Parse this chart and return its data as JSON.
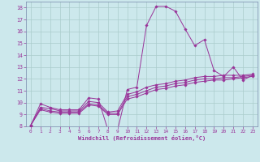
{
  "xlabel": "Windchill (Refroidissement éolien,°C)",
  "background_color": "#cce8ec",
  "line_color": "#993399",
  "grid_color": "#aacccc",
  "spine_color": "#7788aa",
  "xlim": [
    -0.5,
    23.5
  ],
  "ylim": [
    8,
    18.5
  ],
  "xticks": [
    0,
    1,
    2,
    3,
    4,
    5,
    6,
    7,
    8,
    9,
    10,
    11,
    12,
    13,
    14,
    15,
    16,
    17,
    18,
    19,
    20,
    21,
    22,
    23
  ],
  "yticks": [
    8,
    9,
    10,
    11,
    12,
    13,
    14,
    15,
    16,
    17,
    18
  ],
  "lines": [
    {
      "x": [
        0,
        1,
        2,
        3,
        4,
        5,
        6,
        7,
        8,
        9,
        10,
        11,
        12,
        13,
        14,
        15,
        16,
        17,
        18,
        19,
        20,
        21,
        22,
        23
      ],
      "y": [
        8.1,
        9.9,
        9.6,
        9.4,
        9.4,
        9.4,
        10.4,
        10.3,
        7.7,
        7.7,
        11.1,
        11.3,
        16.5,
        18.1,
        18.1,
        17.7,
        16.2,
        14.8,
        15.3,
        12.7,
        12.2,
        13.0,
        11.9,
        12.3
      ]
    },
    {
      "x": [
        0,
        1,
        2,
        3,
        4,
        5,
        6,
        7,
        8,
        9,
        10,
        11,
        12,
        13,
        14,
        15,
        16,
        17,
        18,
        19,
        20,
        21,
        22,
        23
      ],
      "y": [
        8.1,
        9.6,
        9.5,
        9.3,
        9.3,
        9.3,
        10.1,
        10.0,
        9.2,
        9.3,
        10.7,
        10.9,
        11.3,
        11.5,
        11.6,
        11.8,
        11.9,
        12.1,
        12.2,
        12.2,
        12.3,
        12.3,
        12.3,
        12.4
      ]
    },
    {
      "x": [
        0,
        1,
        2,
        3,
        4,
        5,
        6,
        7,
        8,
        9,
        10,
        11,
        12,
        13,
        14,
        15,
        16,
        17,
        18,
        19,
        20,
        21,
        22,
        23
      ],
      "y": [
        8.1,
        9.5,
        9.3,
        9.2,
        9.2,
        9.2,
        9.9,
        9.8,
        9.1,
        9.1,
        10.5,
        10.7,
        11.0,
        11.3,
        11.4,
        11.6,
        11.7,
        11.9,
        12.0,
        12.0,
        12.1,
        12.1,
        12.2,
        12.3
      ]
    },
    {
      "x": [
        0,
        1,
        2,
        3,
        4,
        5,
        6,
        7,
        8,
        9,
        10,
        11,
        12,
        13,
        14,
        15,
        16,
        17,
        18,
        19,
        20,
        21,
        22,
        23
      ],
      "y": [
        8.1,
        9.4,
        9.2,
        9.1,
        9.1,
        9.1,
        9.8,
        9.7,
        9.0,
        9.0,
        10.3,
        10.5,
        10.8,
        11.1,
        11.2,
        11.4,
        11.5,
        11.7,
        11.8,
        11.9,
        11.9,
        12.0,
        12.1,
        12.2
      ]
    }
  ]
}
